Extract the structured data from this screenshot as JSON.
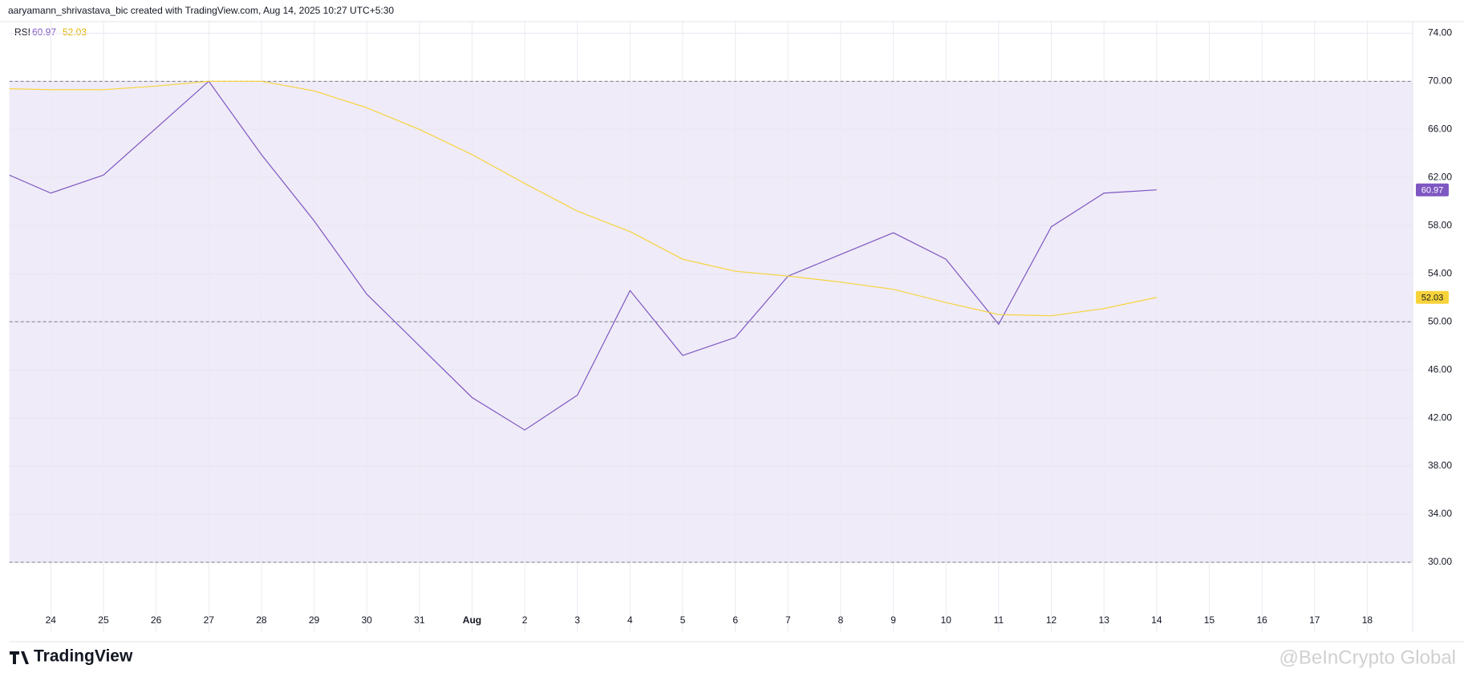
{
  "header": "aaryamann_shrivastava_bic created with TradingView.com, Aug 14, 2025 10:27 UTC+5:30",
  "logo": "TradingView",
  "watermark": "@BeInCrypto Global",
  "chart_data": {
    "type": "line",
    "indicator": "RSI",
    "categories": [
      null,
      "24",
      "25",
      "26",
      "27",
      "28",
      "29",
      "30",
      "31",
      "Aug",
      "2",
      "3",
      "4",
      "5",
      "6",
      "7",
      "8",
      "9",
      "10",
      "11",
      "12",
      "13",
      "14",
      "15",
      "16",
      "17",
      "18"
    ],
    "series": [
      {
        "name": "RSI",
        "color": "#7e57c2",
        "values": [
          62.6,
          60.7,
          62.2,
          66.1,
          70.0,
          63.9,
          58.4,
          52.3,
          48.0,
          43.7,
          41.0,
          43.9,
          52.6,
          47.2,
          48.7,
          53.8,
          55.6,
          57.4,
          55.2,
          49.8,
          57.9,
          60.7,
          60.97,
          null,
          null,
          null,
          null
        ]
      },
      {
        "color": "#f7d33a",
        "values": [
          69.4,
          69.3,
          69.3,
          69.6,
          70.0,
          70.0,
          69.2,
          67.8,
          66.0,
          63.9,
          61.5,
          59.2,
          57.5,
          55.2,
          54.2,
          53.8,
          53.3,
          52.7,
          51.6,
          50.6,
          50.5,
          51.1,
          52.03,
          null,
          null,
          null,
          null
        ]
      }
    ],
    "ylim": [
      24.2,
      75.05
    ],
    "yticks": [
      {
        "value": 30,
        "label": "30.00"
      },
      {
        "value": 34,
        "label": "34.00"
      },
      {
        "value": 38,
        "label": "38.00"
      },
      {
        "value": 42,
        "label": "42.00"
      },
      {
        "value": 46,
        "label": "46.00"
      },
      {
        "value": 50,
        "label": "50.00"
      },
      {
        "value": 54,
        "label": "54.00"
      },
      {
        "value": 58,
        "label": "58.00"
      },
      {
        "value": 62,
        "label": "62.00"
      },
      {
        "value": 66,
        "label": "66.00"
      },
      {
        "value": 70,
        "label": "70.00"
      },
      {
        "value": 74,
        "label": "74.00"
      }
    ],
    "levels": [
      30,
      50,
      70
    ],
    "band_color": "#efebf8",
    "grid": true
  }
}
